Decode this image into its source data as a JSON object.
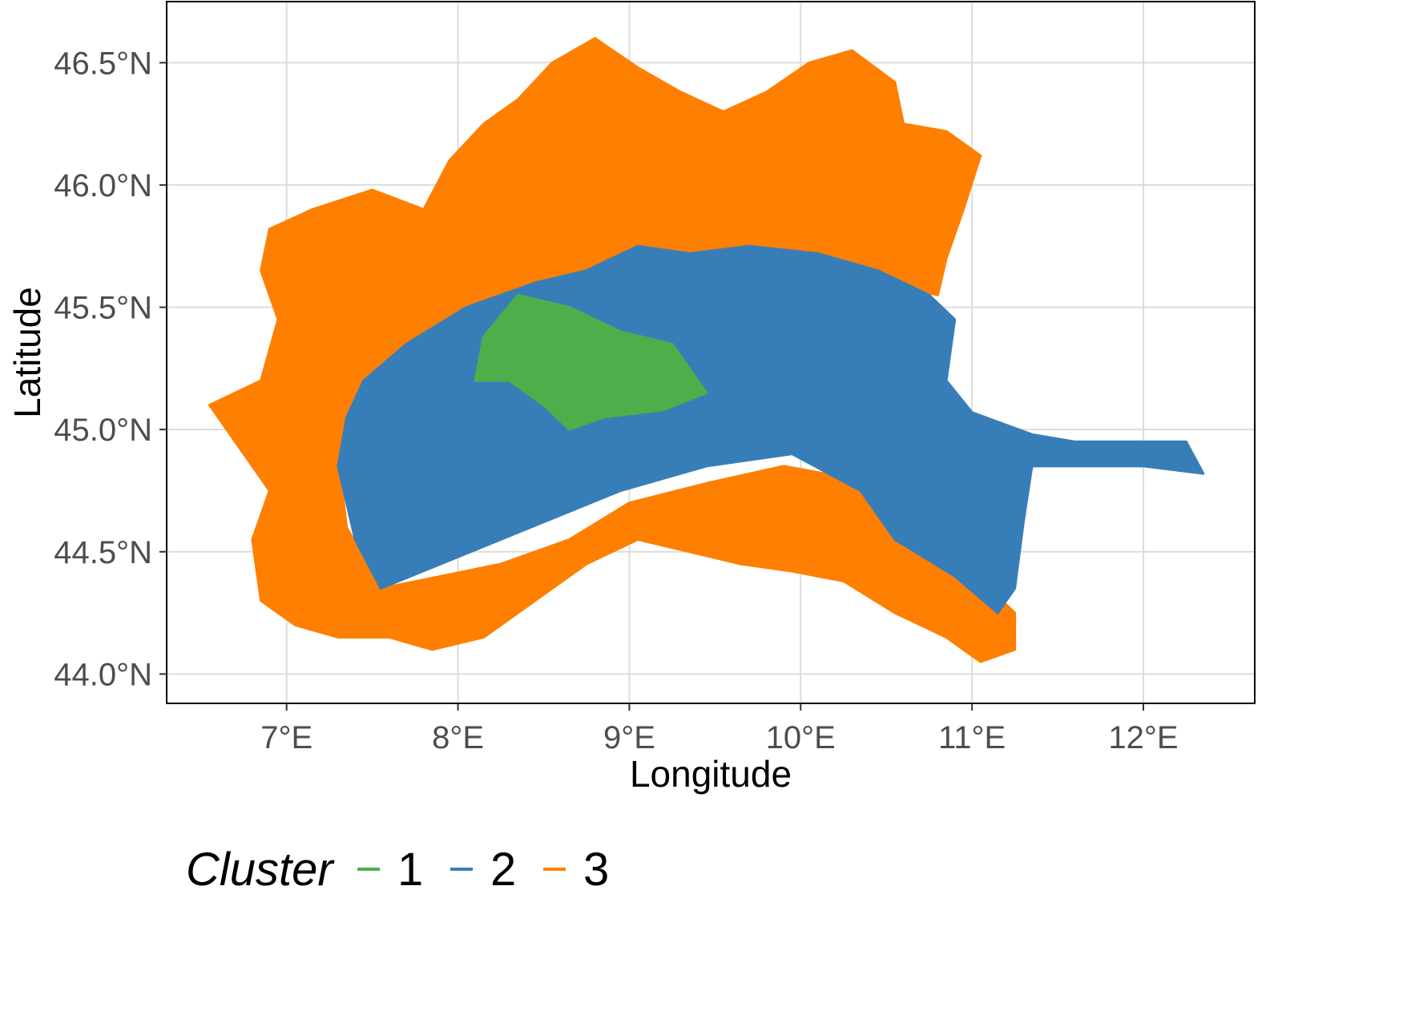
{
  "chart_data": {
    "type": "map",
    "xlabel": "Longitude",
    "ylabel": "Latitude",
    "xlim": [
      6.3,
      12.65
    ],
    "ylim": [
      43.88,
      46.75
    ],
    "x_ticks": [
      {
        "value": 7,
        "label": "7°E"
      },
      {
        "value": 8,
        "label": "8°E"
      },
      {
        "value": 9,
        "label": "9°E"
      },
      {
        "value": 10,
        "label": "10°E"
      },
      {
        "value": 11,
        "label": "11°E"
      },
      {
        "value": 12,
        "label": "12°E"
      }
    ],
    "y_ticks": [
      {
        "value": 44.0,
        "label": "44.0°N"
      },
      {
        "value": 44.5,
        "label": "44.5°N"
      },
      {
        "value": 45.0,
        "label": "45.0°N"
      },
      {
        "value": 45.5,
        "label": "45.5°N"
      },
      {
        "value": 46.0,
        "label": "46.0°N"
      },
      {
        "value": 46.5,
        "label": "46.5°N"
      }
    ],
    "grid": true,
    "legend": {
      "title": "Cluster",
      "position": "bottom",
      "entries": [
        {
          "label": "1",
          "color": "#4daf4a"
        },
        {
          "label": "2",
          "color": "#377eb8"
        },
        {
          "label": "3",
          "color": "#ff7f00"
        }
      ]
    },
    "regions": [
      {
        "cluster": "3",
        "color": "#ff7f00",
        "polygon": [
          [
            6.9,
            45.82
          ],
          [
            7.15,
            45.9
          ],
          [
            7.5,
            45.98
          ],
          [
            7.8,
            45.9
          ],
          [
            7.95,
            46.1
          ],
          [
            8.15,
            46.25
          ],
          [
            8.35,
            46.35
          ],
          [
            8.55,
            46.5
          ],
          [
            8.8,
            46.6
          ],
          [
            9.05,
            46.48
          ],
          [
            9.3,
            46.38
          ],
          [
            9.55,
            46.3
          ],
          [
            9.8,
            46.38
          ],
          [
            10.05,
            46.5
          ],
          [
            10.3,
            46.55
          ],
          [
            10.55,
            46.42
          ],
          [
            10.6,
            46.25
          ],
          [
            10.85,
            46.22
          ],
          [
            11.05,
            46.12
          ],
          [
            10.95,
            45.9
          ],
          [
            10.85,
            45.7
          ],
          [
            10.8,
            45.55
          ],
          [
            10.45,
            45.6
          ],
          [
            10.1,
            45.65
          ],
          [
            9.7,
            45.7
          ],
          [
            9.3,
            45.65
          ],
          [
            8.9,
            45.6
          ],
          [
            8.5,
            45.55
          ],
          [
            8.05,
            45.45
          ],
          [
            7.7,
            45.3
          ],
          [
            7.45,
            45.15
          ],
          [
            7.3,
            44.9
          ],
          [
            7.35,
            44.6
          ],
          [
            7.55,
            44.35
          ],
          [
            7.9,
            44.4
          ],
          [
            8.25,
            44.45
          ],
          [
            8.65,
            44.55
          ],
          [
            9.0,
            44.7
          ],
          [
            9.45,
            44.78
          ],
          [
            9.9,
            44.85
          ],
          [
            10.3,
            44.8
          ],
          [
            10.6,
            44.6
          ],
          [
            10.9,
            44.45
          ],
          [
            11.1,
            44.35
          ],
          [
            11.25,
            44.25
          ],
          [
            11.25,
            44.1
          ],
          [
            11.05,
            44.05
          ],
          [
            10.85,
            44.15
          ],
          [
            10.55,
            44.25
          ],
          [
            10.25,
            44.38
          ],
          [
            9.95,
            44.42
          ],
          [
            9.65,
            44.45
          ],
          [
            9.35,
            44.5
          ],
          [
            9.05,
            44.55
          ],
          [
            8.75,
            44.45
          ],
          [
            8.45,
            44.3
          ],
          [
            8.15,
            44.15
          ],
          [
            7.85,
            44.1
          ],
          [
            7.6,
            44.15
          ],
          [
            7.3,
            44.15
          ],
          [
            7.05,
            44.2
          ],
          [
            6.85,
            44.3
          ],
          [
            6.8,
            44.55
          ],
          [
            6.9,
            44.75
          ],
          [
            6.7,
            44.95
          ],
          [
            6.55,
            45.1
          ],
          [
            6.85,
            45.2
          ],
          [
            6.95,
            45.45
          ],
          [
            6.85,
            45.65
          ]
        ]
      },
      {
        "cluster": "2",
        "color": "#377eb8",
        "polygon": [
          [
            7.45,
            45.2
          ],
          [
            7.7,
            45.35
          ],
          [
            8.05,
            45.5
          ],
          [
            8.45,
            45.6
          ],
          [
            8.75,
            45.65
          ],
          [
            9.05,
            45.75
          ],
          [
            9.35,
            45.72
          ],
          [
            9.7,
            45.75
          ],
          [
            10.1,
            45.72
          ],
          [
            10.45,
            45.65
          ],
          [
            10.75,
            45.55
          ],
          [
            10.9,
            45.45
          ],
          [
            10.85,
            45.2
          ],
          [
            11.0,
            45.07
          ],
          [
            11.35,
            44.98
          ],
          [
            11.6,
            44.95
          ],
          [
            11.9,
            44.95
          ],
          [
            12.25,
            44.95
          ],
          [
            12.35,
            44.82
          ],
          [
            12.0,
            44.85
          ],
          [
            11.6,
            44.85
          ],
          [
            11.35,
            44.85
          ],
          [
            11.3,
            44.62
          ],
          [
            11.25,
            44.35
          ],
          [
            11.15,
            44.25
          ],
          [
            10.9,
            44.4
          ],
          [
            10.55,
            44.55
          ],
          [
            10.35,
            44.75
          ],
          [
            9.95,
            44.9
          ],
          [
            9.45,
            44.85
          ],
          [
            8.95,
            44.75
          ],
          [
            8.6,
            44.65
          ],
          [
            8.25,
            44.55
          ],
          [
            7.9,
            44.45
          ],
          [
            7.55,
            44.35
          ],
          [
            7.4,
            44.55
          ],
          [
            7.3,
            44.85
          ],
          [
            7.35,
            45.05
          ]
        ]
      },
      {
        "cluster": "1",
        "color": "#4daf4a",
        "polygon": [
          [
            8.1,
            45.2
          ],
          [
            8.15,
            45.38
          ],
          [
            8.35,
            45.55
          ],
          [
            8.65,
            45.5
          ],
          [
            8.95,
            45.4
          ],
          [
            9.25,
            45.35
          ],
          [
            9.45,
            45.15
          ],
          [
            9.2,
            45.08
          ],
          [
            8.85,
            45.05
          ],
          [
            8.65,
            45.0
          ],
          [
            8.5,
            45.1
          ],
          [
            8.3,
            45.2
          ]
        ]
      }
    ]
  }
}
